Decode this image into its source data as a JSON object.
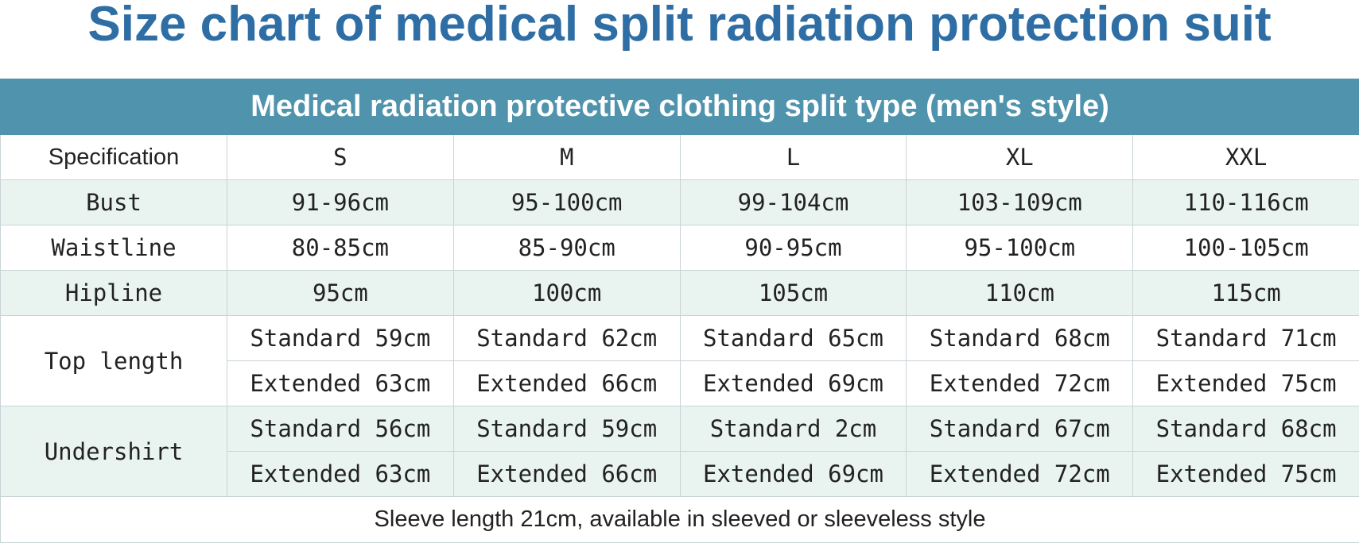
{
  "title": "Size chart of medical split radiation protection suit",
  "table": {
    "banner": "Medical radiation protective clothing split type (men's style)",
    "header": {
      "label": "Specification",
      "sizes": [
        "S",
        "M",
        "L",
        "XL",
        "XXL"
      ]
    },
    "bust": {
      "label": "Bust",
      "values": [
        "91-96cm",
        "95-100cm",
        "99-104cm",
        "103-109cm",
        "110-116cm"
      ]
    },
    "waistline": {
      "label": "Waistline",
      "values": [
        "80-85cm",
        "85-90cm",
        "90-95cm",
        "95-100cm",
        "100-105cm"
      ]
    },
    "hipline": {
      "label": "Hipline",
      "values": [
        "95cm",
        "100cm",
        "105cm",
        "110cm",
        "115cm"
      ]
    },
    "top_length": {
      "label": "Top length",
      "standard": [
        "Standard 59cm",
        "Standard 62cm",
        "Standard 65cm",
        "Standard 68cm",
        "Standard 71cm"
      ],
      "extended": [
        "Extended 63cm",
        "Extended 66cm",
        "Extended 69cm",
        "Extended 72cm",
        "Extended 75cm"
      ]
    },
    "undershirt": {
      "label": "Undershirt",
      "standard": [
        "Standard 56cm",
        "Standard 59cm",
        "Standard 2cm",
        "Standard 67cm",
        "Standard 68cm"
      ],
      "extended": [
        "Extended 63cm",
        "Extended 66cm",
        "Extended 69cm",
        "Extended 72cm",
        "Extended 75cm"
      ]
    },
    "footnote": "Sleeve length 21cm, available in sleeved or sleeveless style"
  },
  "colors": {
    "title": "#2f6ea5",
    "banner_bg": "#4f93ad",
    "banner_text": "#ffffff",
    "row_shade": "#e9f4f0",
    "grid": "#c9d3d6"
  }
}
